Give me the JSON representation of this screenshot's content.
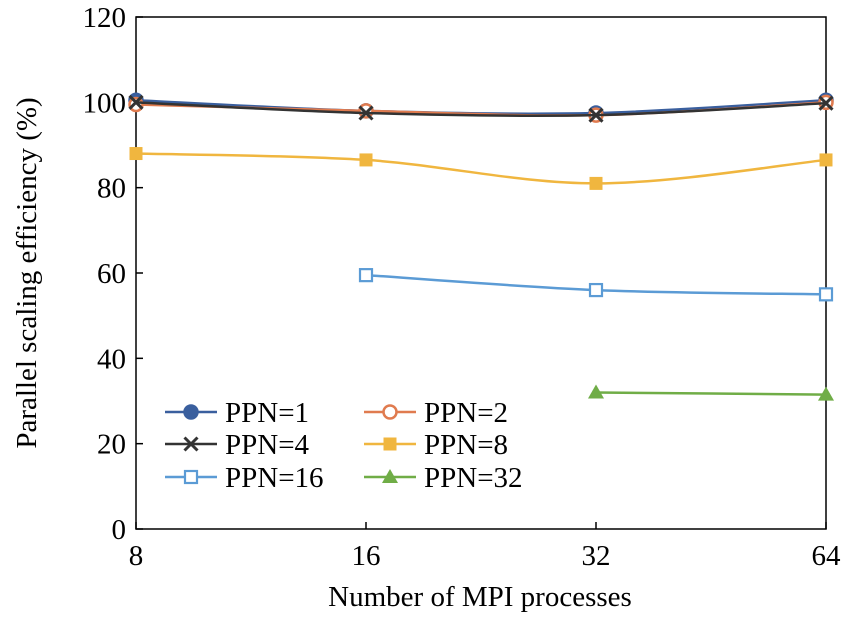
{
  "chart_data": {
    "type": "line",
    "x": [
      8,
      16,
      32,
      64
    ],
    "x_tick_labels": [
      "8",
      "16",
      "32",
      "64"
    ],
    "xscale": "log2",
    "xlabel": "Number of MPI processes",
    "ylabel": "Parallel scaling efficiency (%)",
    "ylim": [
      0,
      120
    ],
    "y_ticks": [
      0,
      20,
      40,
      60,
      80,
      100,
      120
    ],
    "grid": false,
    "legend_placement": "bottom-left",
    "series": [
      {
        "name": "PPN=1",
        "values": [
          100.5,
          98.0,
          97.5,
          100.5
        ],
        "color": "#3a5f9e",
        "marker": "filled-circle"
      },
      {
        "name": "PPN=2",
        "values": [
          99.5,
          98.0,
          97.0,
          100.0
        ],
        "color": "#e07b4f",
        "marker": "open-circle"
      },
      {
        "name": "PPN=4",
        "values": [
          100.0,
          97.5,
          97.0,
          99.8
        ],
        "color": "#333333",
        "marker": "x"
      },
      {
        "name": "PPN=8",
        "values": [
          88.0,
          86.5,
          81.0,
          86.5
        ],
        "color": "#f0b63f",
        "marker": "filled-square"
      },
      {
        "name": "PPN=16",
        "values": [
          null,
          59.5,
          56.0,
          55.0
        ],
        "color": "#5b9bd5",
        "marker": "open-square"
      },
      {
        "name": "PPN=32",
        "values": [
          null,
          null,
          32.0,
          31.5
        ],
        "color": "#70ad47",
        "marker": "filled-triangle"
      }
    ]
  }
}
